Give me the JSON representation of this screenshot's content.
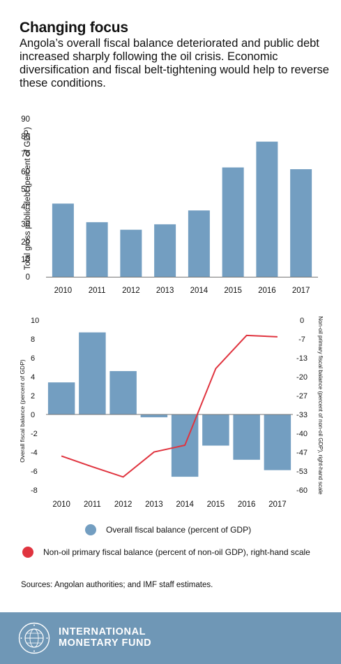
{
  "header": {
    "title": "Changing focus",
    "subtitle": "Angola’s overall fiscal balance deteriorated and public debt increased sharply following the oil crisis. Economic diversification and fiscal belt-tightening would help to reverse these conditions."
  },
  "colors": {
    "bar": "#739ec1",
    "line": "#e0343f",
    "footer": "#6f97b6"
  },
  "chart_data": [
    {
      "type": "bar",
      "categories": [
        "2010",
        "2011",
        "2012",
        "2013",
        "2014",
        "2015",
        "2016",
        "2017"
      ],
      "values": [
        41.7,
        31.1,
        26.8,
        29.9,
        37.8,
        62.3,
        77.0,
        61.3
      ],
      "ylabel": "Total gross public debt (percent of GDP)",
      "ylim": [
        0,
        90
      ],
      "yticks": [
        "0",
        "10",
        "20",
        "30",
        "40",
        "50",
        "60",
        "70",
        "80",
        "90"
      ],
      "grid": false
    },
    {
      "type": "bar+line",
      "categories": [
        "2010",
        "2011",
        "2012",
        "2013",
        "2014",
        "2015",
        "2016",
        "2017"
      ],
      "series": [
        {
          "name": "Overall fiscal balance (percent of GDP)",
          "type": "bar",
          "axis": "left",
          "values": [
            3.4,
            8.7,
            4.6,
            -0.3,
            -6.6,
            -3.3,
            -4.8,
            -5.9
          ]
        },
        {
          "name": "Non-oil primary fiscal balance (percent of non-oil GDP), right-hand scale",
          "type": "line",
          "axis": "right",
          "values": [
            -48.0,
            -51.8,
            -55.4,
            -46.6,
            -44.2,
            -17.1,
            -5.4,
            -5.9
          ]
        }
      ],
      "ylabel": "Overall fiscal balance (percent of GDP)",
      "ylabel_right": "Non-oil primary fiscal balance (percent of non-oil GDP), right-hand scale",
      "ylim": [
        -8,
        10
      ],
      "ylim_right": [
        -60,
        0
      ],
      "yticks": [
        "10",
        "8",
        "6",
        "4",
        "2",
        "0",
        "-2",
        "-4",
        "-6",
        "-8"
      ],
      "yticks_right": [
        "0",
        "-7",
        "-13",
        "-20",
        "-27",
        "-33",
        "-40",
        "-47",
        "-53",
        "-60"
      ],
      "legend": "bottom"
    }
  ],
  "legend": {
    "bar": "Overall fiscal balance (percent of GDP)",
    "line": "Non-oil primary fiscal balance (percent of non-oil GDP), right-hand scale"
  },
  "source": "Sources: Angolan authorities; and IMF staff estimates.",
  "footer": {
    "org_line1": "INTERNATIONAL",
    "org_line2": "MONETARY FUND",
    "seal_text": "INTERNATIONAL MONETARY FUND",
    "seal_icon": "imf-seal-icon"
  }
}
